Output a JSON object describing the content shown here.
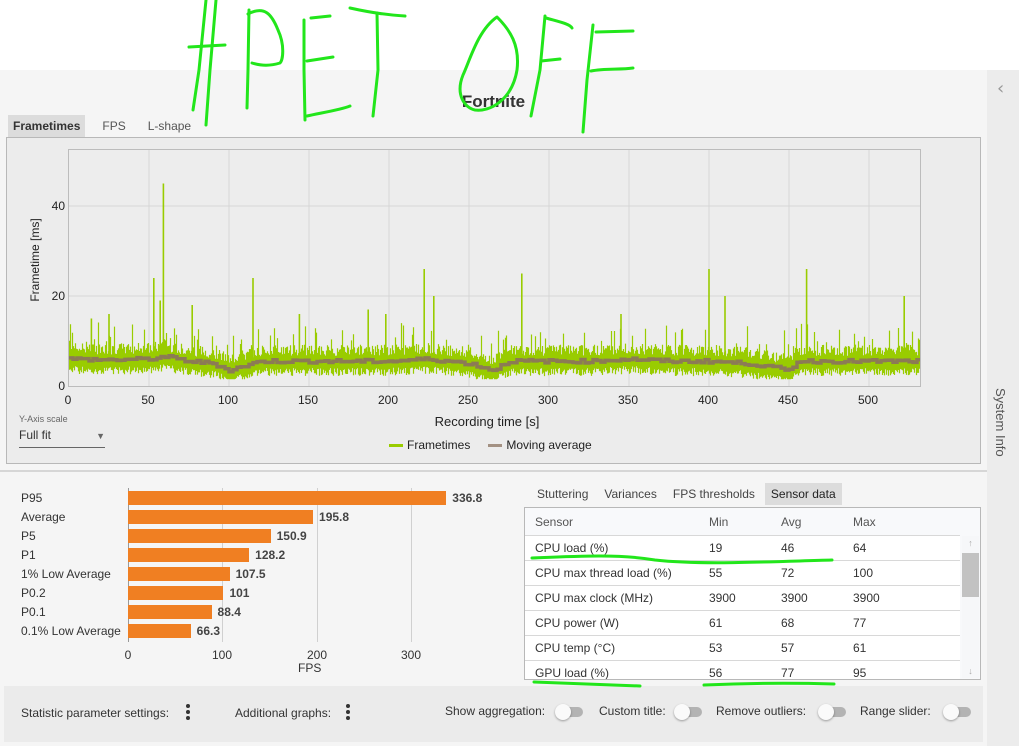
{
  "annotation": {
    "text": "HPET OFF",
    "color": "#22e61b"
  },
  "header": {
    "title": "Fortnite"
  },
  "chart_tabs": [
    {
      "label": "Frametimes",
      "active": true
    },
    {
      "label": "FPS",
      "active": false
    },
    {
      "label": "L-shape",
      "active": false
    }
  ],
  "y_axis_scale": {
    "label": "Y-Axis scale",
    "value": "Full fit"
  },
  "sidebar": {
    "label": "System Info",
    "collapse_icon": "chevron-left-icon"
  },
  "colors": {
    "frametimes": "#99cc00",
    "moving_average": "#8c7b55",
    "bars": "#f07f22"
  },
  "chart_data": [
    {
      "type": "line",
      "title": "Frametimes",
      "xlabel": "Recording time [s]",
      "ylabel": "Frametime [ms]",
      "xlim": [
        0,
        532
      ],
      "ylim": [
        0,
        52
      ],
      "x_ticks": [
        0,
        50,
        100,
        150,
        200,
        250,
        300,
        350,
        400,
        450,
        500
      ],
      "y_ticks": [
        0,
        20,
        40
      ],
      "grid": true,
      "legend": [
        "Frametimes",
        "Moving average"
      ],
      "legend_position": "bottom",
      "series": [
        {
          "name": "Frametimes",
          "description": "Dense frametime trace, baseline ~3–9 ms with spikes",
          "baseline_range_ms": [
            3,
            9
          ],
          "spikes": [
            {
              "x": 14,
              "y": 15
            },
            {
              "x": 25,
              "y": 16
            },
            {
              "x": 53,
              "y": 24
            },
            {
              "x": 57,
              "y": 19
            },
            {
              "x": 59,
              "y": 45
            },
            {
              "x": 77,
              "y": 18
            },
            {
              "x": 115,
              "y": 24
            },
            {
              "x": 144,
              "y": 16
            },
            {
              "x": 187,
              "y": 17
            },
            {
              "x": 198,
              "y": 16
            },
            {
              "x": 222,
              "y": 26
            },
            {
              "x": 228,
              "y": 20
            },
            {
              "x": 283,
              "y": 25
            },
            {
              "x": 345,
              "y": 16
            },
            {
              "x": 400,
              "y": 26
            },
            {
              "x": 410,
              "y": 20
            },
            {
              "x": 461,
              "y": 26
            },
            {
              "x": 522,
              "y": 20
            }
          ]
        },
        {
          "name": "Moving average",
          "x": [
            0,
            25,
            50,
            60,
            75,
            90,
            100,
            120,
            150,
            175,
            200,
            225,
            250,
            265,
            275,
            300,
            325,
            350,
            375,
            400,
            425,
            450,
            455,
            475,
            500,
            532
          ],
          "y": [
            6,
            5.8,
            6,
            6.5,
            5.5,
            5,
            3.5,
            5.5,
            5.5,
            5.5,
            5.5,
            6,
            5,
            3.5,
            5.5,
            5.5,
            5.5,
            6,
            5.5,
            5.5,
            5,
            3.5,
            5.5,
            5.5,
            5.5,
            5.5
          ]
        }
      ]
    },
    {
      "type": "bar",
      "orientation": "horizontal",
      "xlabel": "FPS",
      "x_ticks": [
        0,
        100,
        200,
        300
      ],
      "xlim": [
        0,
        350
      ],
      "categories": [
        "P95",
        "Average",
        "P5",
        "P1",
        "1% Low Average",
        "P0.2",
        "P0.1",
        "0.1% Low Average"
      ],
      "values": [
        336.8,
        195.8,
        150.9,
        128.2,
        107.5,
        101,
        88.4,
        66.3
      ],
      "value_labels": [
        "336.8",
        "195.8",
        "150.9",
        "128.2",
        "107.5",
        "101",
        "88.4",
        "66.3"
      ]
    }
  ],
  "analysis_tabs": [
    {
      "label": "Stuttering",
      "active": false
    },
    {
      "label": "Variances",
      "active": false
    },
    {
      "label": "FPS thresholds",
      "active": false
    },
    {
      "label": "Sensor data",
      "active": true
    }
  ],
  "sensor_table": {
    "columns": [
      "Sensor",
      "Min",
      "Avg",
      "Max"
    ],
    "rows": [
      [
        "CPU load (%)",
        "19",
        "46",
        "64"
      ],
      [
        "CPU max thread load (%)",
        "55",
        "72",
        "100"
      ],
      [
        "CPU max clock (MHz)",
        "3900",
        "3900",
        "3900"
      ],
      [
        "CPU power (W)",
        "61",
        "68",
        "77"
      ],
      [
        "CPU temp (°C)",
        "53",
        "57",
        "61"
      ],
      [
        "GPU load (%)",
        "56",
        "77",
        "95"
      ]
    ]
  },
  "toolbar": {
    "statistic_settings": "Statistic parameter settings:",
    "additional_graphs": "Additional graphs:",
    "show_aggregation": "Show aggregation:",
    "custom_title": "Custom title:",
    "remove_outliers": "Remove outliers:",
    "range_slider": "Range slider:"
  }
}
